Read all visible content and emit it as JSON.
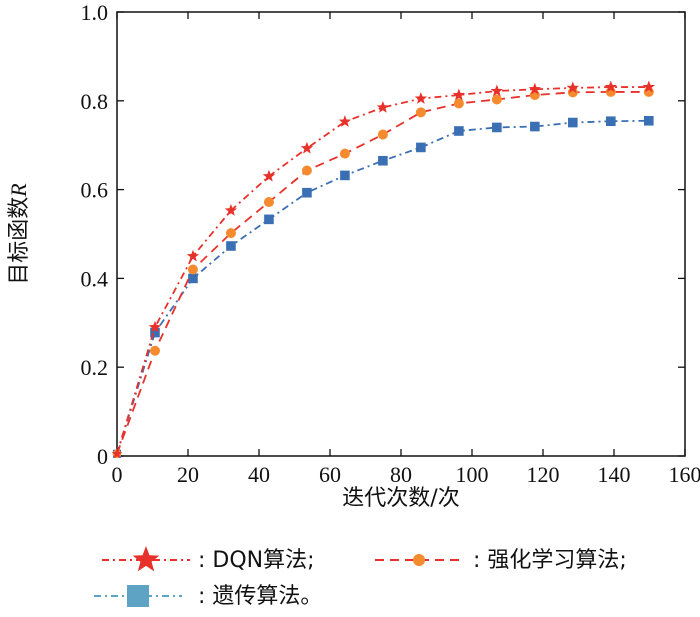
{
  "chart_data": {
    "type": "line",
    "xlabel": "迭代次数/次",
    "ylabel_main": "目标函数",
    "ylabel_var": "R",
    "xlim": [
      0,
      160
    ],
    "ylim": [
      0,
      1.0
    ],
    "x_ticks": [
      0,
      20,
      40,
      60,
      80,
      100,
      120,
      140,
      160
    ],
    "y_ticks": [
      0,
      0.2,
      0.4,
      0.6,
      0.8,
      1.0
    ],
    "x_tick_labels": [
      "0",
      "20",
      "40",
      "60",
      "80",
      "100",
      "120",
      "140",
      "160"
    ],
    "y_tick_labels": [
      "0",
      "0.2",
      "0.4",
      "0.6",
      "0.8",
      "1.0"
    ],
    "grid": false,
    "legend_position": "bottom",
    "series": [
      {
        "name": "DQN算法",
        "color": "#e8312a",
        "marker": "star",
        "dash": "dashdot",
        "x": [
          0,
          10.7,
          21.4,
          32.1,
          42.8,
          53.5,
          64.2,
          74.9,
          85.6,
          96.3,
          107,
          117.7,
          128.4,
          139.1,
          149.8
        ],
        "y": [
          0.005,
          0.29,
          0.45,
          0.553,
          0.63,
          0.693,
          0.753,
          0.785,
          0.805,
          0.813,
          0.822,
          0.826,
          0.829,
          0.831,
          0.831
        ]
      },
      {
        "name": "强化学习算法",
        "color": "#f58a2e",
        "line_color": "#e8312a",
        "marker": "circle",
        "dash": "dash",
        "x": [
          0,
          10.7,
          21.4,
          32.1,
          42.8,
          53.5,
          64.2,
          74.9,
          85.6,
          96.3,
          107,
          117.7,
          128.4,
          139.1,
          149.8
        ],
        "y": [
          0.005,
          0.237,
          0.42,
          0.502,
          0.572,
          0.643,
          0.681,
          0.724,
          0.774,
          0.794,
          0.803,
          0.813,
          0.819,
          0.82,
          0.82
        ]
      },
      {
        "name": "遗传算法",
        "color": "#3b6fb3",
        "legend_color": "#5fa3c4",
        "marker": "square",
        "dash": "dashdot",
        "x": [
          0,
          10.7,
          21.4,
          32.1,
          42.8,
          53.5,
          64.2,
          74.9,
          85.6,
          96.3,
          107,
          117.7,
          128.4,
          139.1,
          149.8
        ],
        "y": [
          0.005,
          0.278,
          0.4,
          0.473,
          0.533,
          0.593,
          0.632,
          0.665,
          0.695,
          0.732,
          0.74,
          0.742,
          0.751,
          0.754,
          0.755
        ]
      }
    ]
  },
  "legend": {
    "items": [
      {
        "prefix": ": ",
        "label": "DQN算法;"
      },
      {
        "prefix": ": ",
        "label": "强化学习算法;"
      },
      {
        "prefix": ": ",
        "label": "遗传算法。"
      }
    ]
  }
}
